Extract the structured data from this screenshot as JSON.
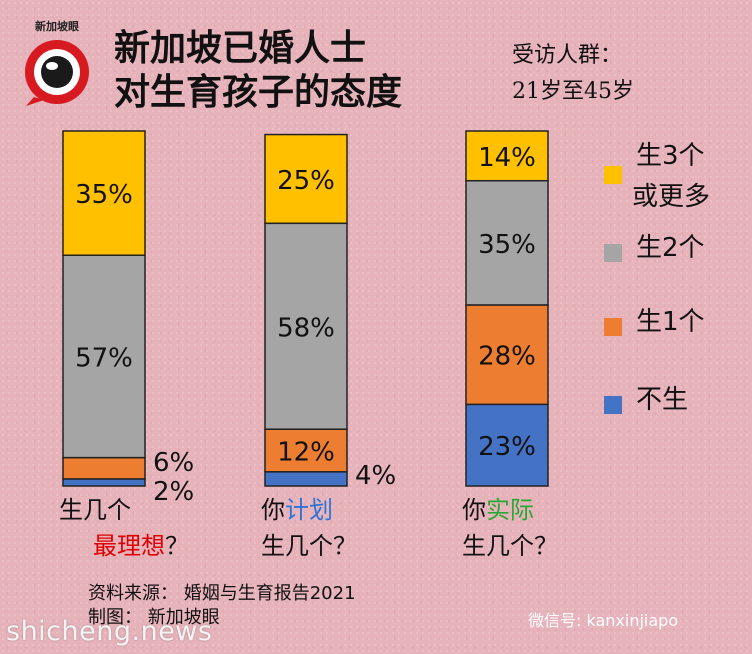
{
  "logo": {
    "text": "新加坡眼"
  },
  "title": {
    "line1": "新加坡已婚人士",
    "line2": "对生育孩子的态度"
  },
  "sample": {
    "line1": "受访人群：",
    "line2": "21岁至45岁"
  },
  "chart_data": {
    "type": "bar",
    "stacked": true,
    "ylim": [
      0,
      100
    ],
    "series": [
      {
        "name": "不生",
        "color": "#4472c4",
        "values": [
          2,
          4,
          23
        ]
      },
      {
        "name": "生1个",
        "color": "#ed7d31",
        "values": [
          6,
          12,
          28
        ]
      },
      {
        "name": "生2个",
        "color": "#a5a5a5",
        "values": [
          57,
          58,
          35
        ]
      },
      {
        "name": "生3个或更多",
        "color": "#ffc000",
        "values": [
          35,
          25,
          14
        ]
      }
    ],
    "categories": [
      {
        "line1": "生几个",
        "highlight": "最理想",
        "tail": "？",
        "highlight_color": "#e00000"
      },
      {
        "line1": "你",
        "highlight": "计划",
        "tail": "",
        "line2": "生几个？",
        "highlight_color": "#2e74d6"
      },
      {
        "line1": "你",
        "highlight": "实际",
        "tail": "",
        "line2": "生几个？",
        "highlight_color": "#2aa834"
      }
    ],
    "labels": [
      [
        "2%",
        "6%",
        "57%",
        "35%"
      ],
      [
        "4%",
        "12%",
        "58%",
        "25%"
      ],
      [
        "23%",
        "28%",
        "35%",
        "14%"
      ]
    ],
    "legend": [
      {
        "line1": "生3个",
        "line2": "或更多",
        "color": "#ffc000"
      },
      {
        "line1": "生2个",
        "color": "#a5a5a5"
      },
      {
        "line1": "生1个",
        "color": "#ed7d31"
      },
      {
        "line1": "不生",
        "color": "#4472c4"
      }
    ],
    "legend_position": "right"
  },
  "source": {
    "line1": "资料来源：  婚姻与生育报告2021",
    "line2": "制图：  新加坡眼"
  },
  "credit": "微信号: kanxinjiapo",
  "watermark": "shicheng.news"
}
